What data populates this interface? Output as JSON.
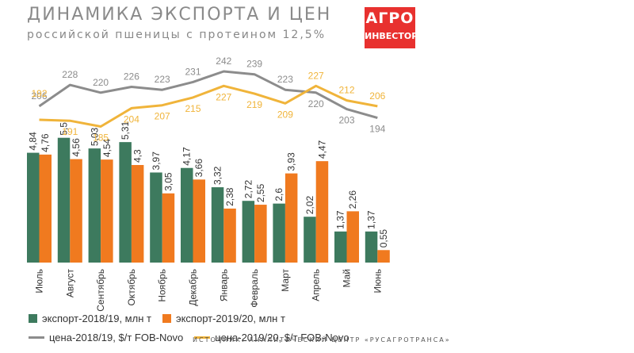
{
  "header": {
    "title": "ДИНАМИКА ЭКСПОРТА И ЦЕН",
    "subtitle": "российской пшеницы с протеином 12,5%"
  },
  "logo": {
    "line1": "АГРО",
    "line2": "ИНВЕСТОР"
  },
  "source": "ИСТОЧНИК: АНАЛИТИЧЕСКИЙ ЦЕНТР «РУСАГРОТРАНСА»",
  "colors": {
    "export_2018": "#3d7a5e",
    "export_2019": "#f07a1f",
    "price_2018": "#8c8c8c",
    "price_2019": "#f0b43a"
  },
  "legend": [
    {
      "label": "экспорт-2018/19, млн т",
      "kind": "box",
      "color": "#3d7a5e"
    },
    {
      "label": "экспорт-2019/20, млн т",
      "kind": "box",
      "color": "#f07a1f"
    },
    {
      "label": "цена-2018/19, $/т FOB-Novo",
      "kind": "line",
      "color": "#8c8c8c"
    },
    {
      "label": "цена-2019/20, $/т FOB-Novo",
      "kind": "line",
      "color": "#f0b43a"
    }
  ],
  "chart_data": {
    "type": "bar",
    "categories": [
      "Июль",
      "Август",
      "Сентябрь",
      "Октябрь",
      "Ноябрь",
      "Декабрь",
      "Январь",
      "Февраль",
      "Март",
      "Апрель",
      "Май",
      "Июнь"
    ],
    "series": [
      {
        "name": "экспорт-2018/19, млн т",
        "values": [
          4.84,
          5.5,
          5.03,
          5.31,
          3.97,
          4.17,
          3.32,
          2.72,
          2.6,
          2.02,
          1.37,
          1.37
        ],
        "labels": [
          "4,84",
          "5,5",
          "5,03",
          "5,31",
          "3,97",
          "4,17",
          "3,32",
          "2,72",
          "2,6",
          "2,02",
          "1,37",
          "1,37"
        ]
      },
      {
        "name": "экспорт-2019/20, млн т",
        "values": [
          4.76,
          4.56,
          4.54,
          4.3,
          3.05,
          3.66,
          2.38,
          2.55,
          3.93,
          4.47,
          2.26,
          0.55
        ],
        "labels": [
          "4,76",
          "4,56",
          "4,54",
          "4,3",
          "3,05",
          "3,66",
          "2,38",
          "2,55",
          "3,93",
          "4,47",
          "2,26",
          "0,55"
        ]
      }
    ],
    "lines": [
      {
        "name": "цена-2018/19, $/т FOB-Novo",
        "values": [
          206,
          228,
          220,
          226,
          223,
          231,
          242,
          239,
          223,
          220,
          203,
          194
        ]
      },
      {
        "name": "цена-2019/20, $/т FOB-Novo",
        "values": [
          192,
          191,
          185,
          204,
          207,
          215,
          227,
          219,
          209,
          227,
          212,
          206
        ]
      }
    ],
    "units": {
      "bars": "млн т",
      "lines": "$/т FOB-Novo"
    },
    "grid": false,
    "legend_position": "bottom"
  }
}
